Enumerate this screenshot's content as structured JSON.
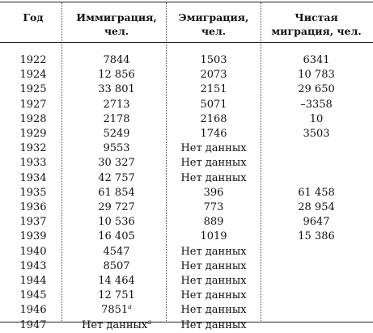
{
  "headers": {
    "year": "Год",
    "immigration": "Иммиграция, чел.",
    "emigration": "Эмиграция, чел.",
    "net": "Чистая миграция, чел."
  },
  "rows": [
    {
      "year": "1922",
      "immigration": "7844",
      "emigration": "1503",
      "net": "6341"
    },
    {
      "year": "1924",
      "immigration": "12 856",
      "emigration": "2073",
      "net": "10 783"
    },
    {
      "year": "1925",
      "immigration": "33 801",
      "emigration": "2151",
      "net": "29 650"
    },
    {
      "year": "1927",
      "immigration": "2713",
      "emigration": "5071",
      "net": "–3358"
    },
    {
      "year": "1928",
      "immigration": "2178",
      "emigration": "2168",
      "net": "10"
    },
    {
      "year": "1929",
      "immigration": "5249",
      "emigration": "1746",
      "net": "3503"
    },
    {
      "year": "1932",
      "immigration": "9553",
      "emigration": "Нет данных",
      "net": ""
    },
    {
      "year": "1933",
      "immigration": "30 327",
      "emigration": "Нет данных",
      "net": ""
    },
    {
      "year": "1934",
      "immigration": "42 757",
      "emigration": "Нет данных",
      "net": ""
    },
    {
      "year": "1935",
      "immigration": "61 854",
      "emigration": "396",
      "net": "61 458"
    },
    {
      "year": "1936",
      "immigration": "29 727",
      "emigration": "773",
      "net": "28 954"
    },
    {
      "year": "1937",
      "immigration": "10 536",
      "emigration": "889",
      "net": "9647"
    },
    {
      "year": "1939",
      "immigration": "16 405",
      "emigration": "1019",
      "net": "15 386"
    },
    {
      "year": "1940",
      "immigration": "4547",
      "emigration": "Нет данных",
      "net": ""
    },
    {
      "year": "1943",
      "immigration": "8507",
      "emigration": "Нет данных",
      "net": ""
    },
    {
      "year": "1944",
      "immigration": "14 464",
      "emigration": "Нет данных",
      "net": ""
    },
    {
      "year": "1945",
      "immigration": "12 751",
      "emigration": "Нет данных",
      "net": ""
    },
    {
      "year": "1946",
      "immigration": "7851",
      "immigration_note": "a",
      "emigration": "Нет данных",
      "net": ""
    },
    {
      "year": "1947",
      "immigration": "Нет данных",
      "immigration_note": "a",
      "emigration": "Нет данных",
      "net": ""
    }
  ]
}
